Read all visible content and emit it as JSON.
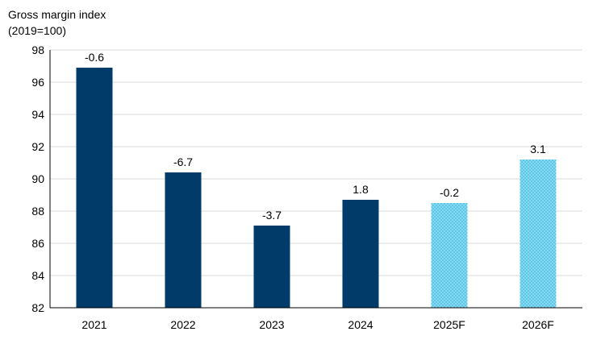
{
  "chart_data": {
    "type": "bar",
    "ylabel_line1": "Gross margin index",
    "ylabel_line2": "(2019=100)",
    "categories": [
      "2021",
      "2022",
      "2023",
      "2024",
      "2025F",
      "2026F"
    ],
    "values": [
      96.9,
      90.4,
      87.1,
      88.7,
      88.5,
      91.2
    ],
    "data_labels": [
      "-0.6",
      "-6.7",
      "-3.7",
      "1.8",
      "-0.2",
      "3.1"
    ],
    "forecast": [
      false,
      false,
      false,
      false,
      true,
      true
    ],
    "ylim": [
      82,
      98
    ],
    "yticks": [
      82,
      84,
      86,
      88,
      90,
      92,
      94,
      96,
      98
    ],
    "grid": true,
    "legend": "none",
    "colors": {
      "actual": "#003B69",
      "forecast": "#5BC8EA",
      "forecast_dots": "#FFFFFF",
      "grid": "#D9D9D9",
      "axis": "#000000"
    }
  }
}
